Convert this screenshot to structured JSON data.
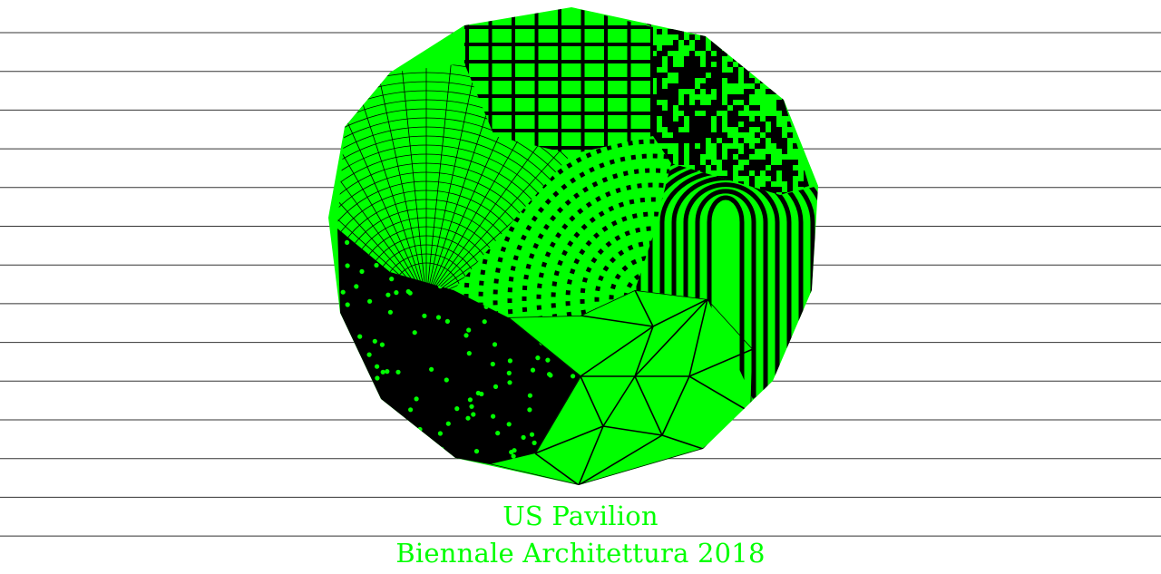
{
  "poster": {
    "title": "US Pavilion",
    "subtitle": "Biennale Architettura 2018"
  },
  "colors": {
    "background": "#ffffff",
    "accent": "#00ff00",
    "ink": "#000000",
    "rule": "#333333"
  }
}
